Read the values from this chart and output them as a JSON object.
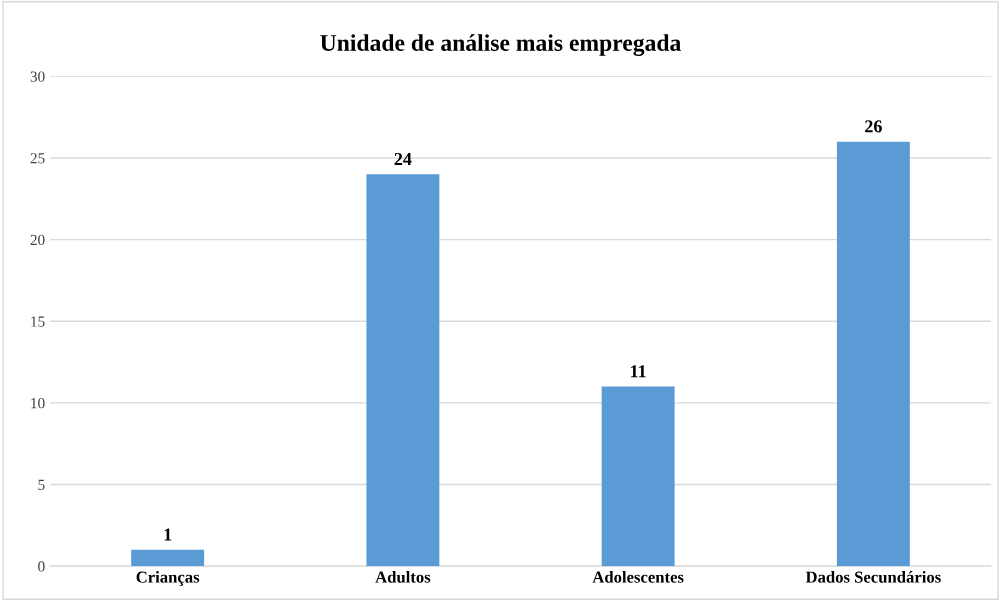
{
  "chart_data": {
    "type": "bar",
    "title": "Unidade de análise mais empregada",
    "categories": [
      "Crianças",
      "Adultos",
      "Adolescentes",
      "Dados Secundários"
    ],
    "values": [
      1,
      24,
      11,
      26
    ],
    "color": "#5b9bd5",
    "ylim": [
      0,
      30
    ],
    "yticks": [
      0,
      5,
      10,
      15,
      20,
      25,
      30
    ],
    "grid": "y",
    "data_labels": true
  }
}
